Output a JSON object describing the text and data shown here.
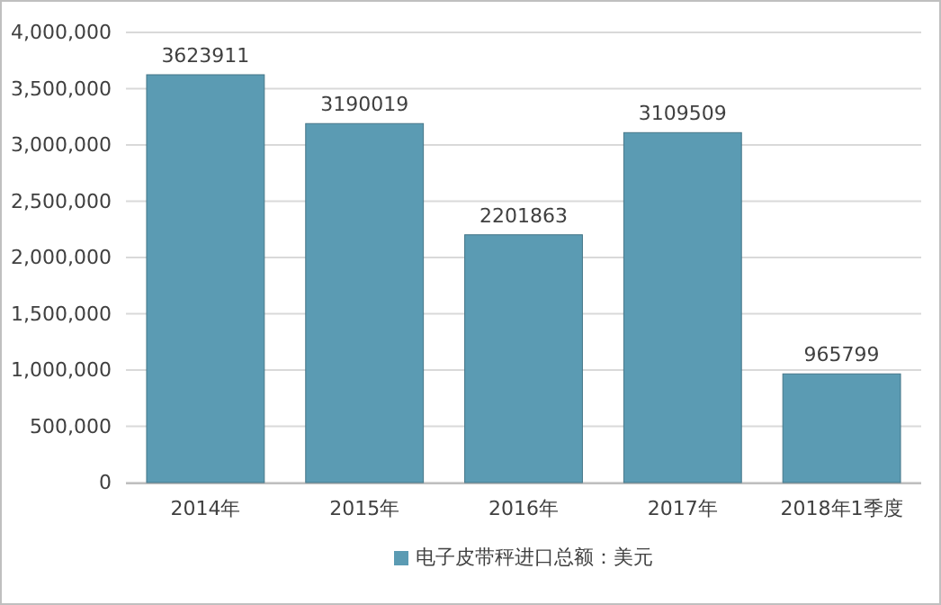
{
  "chart_data": {
    "type": "bar",
    "categories": [
      "2014年",
      "2015年",
      "2016年",
      "2017年",
      "2018年1季度"
    ],
    "series": [
      {
        "name": "电子皮带秤进口总额：美元",
        "color": "#5b9bb3",
        "values": [
          3623911,
          3190019,
          2201863,
          3109509,
          965799
        ]
      }
    ],
    "ylim": [
      0,
      4000000
    ],
    "yticks": [
      {
        "value": 0,
        "label": "0"
      },
      {
        "value": 500000,
        "label": "500,000"
      },
      {
        "value": 1000000,
        "label": "1,000,000"
      },
      {
        "value": 1500000,
        "label": "1,500,000"
      },
      {
        "value": 2000000,
        "label": "2,000,000"
      },
      {
        "value": 2500000,
        "label": "2,500,000"
      },
      {
        "value": 3000000,
        "label": "3,000,000"
      },
      {
        "value": 3500000,
        "label": "3,500,000"
      },
      {
        "value": 4000000,
        "label": "4,000,000"
      }
    ],
    "grid": "y",
    "data_labels": true,
    "legend": "bottom"
  }
}
